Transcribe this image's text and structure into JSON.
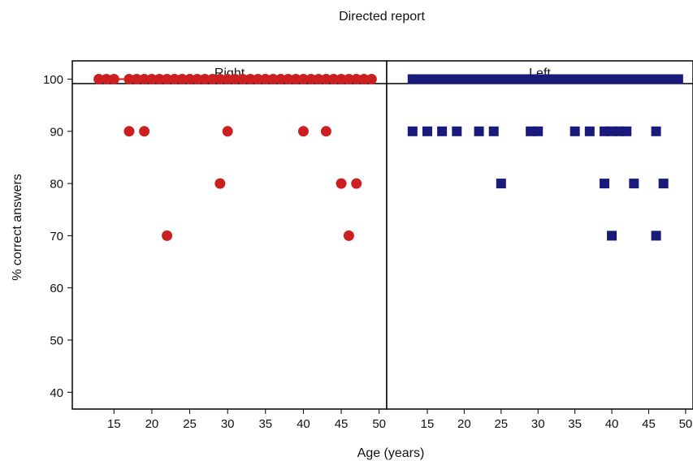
{
  "title": "Directed report",
  "chart_data": {
    "type": "scatter",
    "title": "Directed report",
    "xlabel": "Age (years)",
    "ylabel": "% correct answers",
    "ylim": [
      36,
      103
    ],
    "yticks": [
      40,
      50,
      60,
      70,
      80,
      90,
      100
    ],
    "grid": false,
    "panels": [
      {
        "name": "Right",
        "xlim": [
          9.5,
          51
        ],
        "xticks": [
          15,
          20,
          25,
          30,
          35,
          40,
          45,
          50
        ],
        "marker": "circle",
        "color": "#cc2020",
        "points": [
          [
            13,
            100
          ],
          [
            14,
            100
          ],
          [
            15,
            100
          ],
          [
            17,
            100
          ],
          [
            18,
            100
          ],
          [
            19,
            100
          ],
          [
            20,
            100
          ],
          [
            21,
            100
          ],
          [
            22,
            100
          ],
          [
            23,
            100
          ],
          [
            24,
            100
          ],
          [
            25,
            100
          ],
          [
            26,
            100
          ],
          [
            27,
            100
          ],
          [
            28,
            100
          ],
          [
            29,
            100
          ],
          [
            30,
            100
          ],
          [
            31,
            100
          ],
          [
            32,
            100
          ],
          [
            33,
            100
          ],
          [
            34,
            100
          ],
          [
            35,
            100
          ],
          [
            36,
            100
          ],
          [
            37,
            100
          ],
          [
            38,
            100
          ],
          [
            39,
            100
          ],
          [
            40,
            100
          ],
          [
            41,
            100
          ],
          [
            42,
            100
          ],
          [
            43,
            100
          ],
          [
            44,
            100
          ],
          [
            45,
            100
          ],
          [
            46,
            100
          ],
          [
            47,
            100
          ],
          [
            48,
            100
          ],
          [
            49,
            100
          ],
          [
            17,
            90
          ],
          [
            19,
            90
          ],
          [
            30,
            90
          ],
          [
            40,
            90
          ],
          [
            43,
            90
          ],
          [
            29,
            80
          ],
          [
            45,
            80
          ],
          [
            47,
            80
          ],
          [
            22,
            70
          ],
          [
            46,
            70
          ]
        ]
      },
      {
        "name": "Left",
        "xlim": [
          9.5,
          51
        ],
        "xticks": [
          15,
          20,
          25,
          30,
          35,
          40,
          45,
          50
        ],
        "xtick_labels": [
          "15",
          "20",
          "25",
          "30",
          "35",
          "40",
          "45",
          "50"
        ],
        "marker": "square",
        "color": "#1a1a7a",
        "points": [
          [
            13,
            100
          ],
          [
            14,
            100
          ],
          [
            15,
            100
          ],
          [
            16,
            100
          ],
          [
            17,
            100
          ],
          [
            18,
            100
          ],
          [
            19,
            100
          ],
          [
            20,
            100
          ],
          [
            21,
            100
          ],
          [
            22,
            100
          ],
          [
            23,
            100
          ],
          [
            24,
            100
          ],
          [
            25,
            100
          ],
          [
            26,
            100
          ],
          [
            27,
            100
          ],
          [
            28,
            100
          ],
          [
            29,
            100
          ],
          [
            30,
            100
          ],
          [
            31,
            100
          ],
          [
            32,
            100
          ],
          [
            33,
            100
          ],
          [
            34,
            100
          ],
          [
            35,
            100
          ],
          [
            36,
            100
          ],
          [
            37,
            100
          ],
          [
            38,
            100
          ],
          [
            39,
            100
          ],
          [
            40,
            100
          ],
          [
            41,
            100
          ],
          [
            42,
            100
          ],
          [
            43,
            100
          ],
          [
            44,
            100
          ],
          [
            45,
            100
          ],
          [
            46,
            100
          ],
          [
            47,
            100
          ],
          [
            48,
            100
          ],
          [
            49,
            100
          ],
          [
            13,
            90
          ],
          [
            15,
            90
          ],
          [
            17,
            90
          ],
          [
            19,
            90
          ],
          [
            22,
            90
          ],
          [
            24,
            90
          ],
          [
            29,
            90
          ],
          [
            30,
            90
          ],
          [
            35,
            90
          ],
          [
            37,
            90
          ],
          [
            39,
            90
          ],
          [
            40,
            90
          ],
          [
            41,
            90
          ],
          [
            42,
            90
          ],
          [
            46,
            90
          ],
          [
            25,
            80
          ],
          [
            39,
            80
          ],
          [
            43,
            80
          ],
          [
            47,
            80
          ],
          [
            40,
            70
          ],
          [
            46,
            70
          ]
        ]
      }
    ]
  }
}
